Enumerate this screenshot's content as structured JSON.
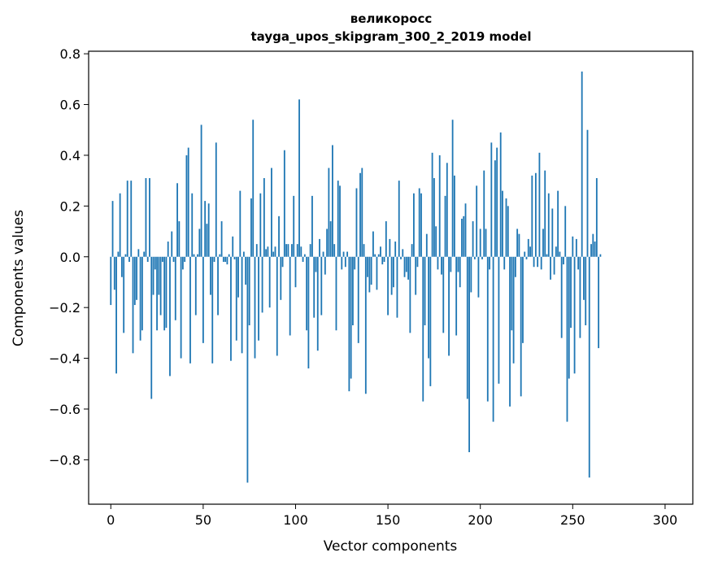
{
  "chart_data": {
    "type": "bar",
    "title": [
      "великоросс",
      "tayga_upos_skipgram_300_2_2019 model"
    ],
    "xlabel": "Vector components",
    "ylabel": "Components values",
    "xlim": [
      -12,
      315
    ],
    "ylim": [
      -0.975,
      0.81
    ],
    "xticks": [
      0,
      50,
      100,
      150,
      200,
      250,
      300
    ],
    "xtick_labels": [
      "0",
      "50",
      "100",
      "150",
      "200",
      "250",
      "300"
    ],
    "yticks": [
      -0.8,
      -0.6,
      -0.4,
      -0.2,
      0.0,
      0.2,
      0.4,
      0.6,
      0.8
    ],
    "ytick_labels": [
      "−0.8",
      "−0.6",
      "−0.4",
      "−0.2",
      "0.0",
      "0.2",
      "0.4",
      "0.6",
      "0.8"
    ],
    "bar_color": "#1f77b4",
    "grid": false,
    "series": [
      {
        "name": "великоросс",
        "values": [
          -0.19,
          0.22,
          -0.13,
          -0.46,
          0.02,
          0.25,
          -0.08,
          -0.3,
          0.01,
          0.3,
          -0.02,
          0.3,
          -0.38,
          -0.19,
          -0.17,
          0.03,
          -0.33,
          -0.29,
          0.02,
          0.31,
          -0.02,
          0.31,
          -0.56,
          -0.15,
          -0.05,
          -0.29,
          -0.15,
          -0.23,
          -0.02,
          -0.29,
          -0.28,
          0.06,
          -0.47,
          0.1,
          -0.02,
          -0.25,
          0.29,
          0.14,
          -0.4,
          -0.05,
          -0.02,
          0.4,
          0.43,
          -0.42,
          0.25,
          0.01,
          -0.23,
          0.01,
          0.11,
          0.52,
          -0.34,
          0.22,
          0.13,
          0.21,
          -0.15,
          -0.42,
          -0.02,
          0.45,
          -0.23,
          0.01,
          0.14,
          -0.02,
          -0.02,
          -0.03,
          0.01,
          -0.41,
          0.08,
          -0.01,
          -0.33,
          -0.16,
          0.26,
          -0.38,
          0.02,
          -0.11,
          -0.89,
          -0.27,
          0.23,
          0.54,
          -0.4,
          0.05,
          -0.33,
          0.25,
          -0.22,
          0.31,
          0.03,
          0.04,
          -0.2,
          0.35,
          0.02,
          0.04,
          -0.39,
          0.16,
          -0.17,
          -0.04,
          0.42,
          0.05,
          0.05,
          -0.31,
          0.05,
          0.24,
          -0.12,
          0.05,
          0.62,
          0.04,
          -0.02,
          0.01,
          -0.29,
          -0.44,
          0.05,
          0.24,
          -0.24,
          -0.06,
          -0.37,
          0.07,
          -0.23,
          0.02,
          -0.07,
          0.11,
          0.35,
          0.14,
          0.44,
          0.05,
          -0.29,
          0.3,
          0.28,
          -0.05,
          0.02,
          -0.04,
          0.02,
          -0.53,
          -0.48,
          -0.27,
          -0.05,
          0.27,
          -0.34,
          0.33,
          0.35,
          0.05,
          -0.54,
          -0.08,
          -0.14,
          -0.11,
          0.1,
          0.01,
          -0.13,
          0.01,
          0.04,
          -0.03,
          -0.02,
          0.14,
          -0.23,
          0.07,
          -0.15,
          -0.12,
          0.06,
          -0.24,
          0.3,
          -0.01,
          0.03,
          -0.08,
          -0.06,
          -0.09,
          -0.3,
          0.05,
          0.25,
          -0.15,
          -0.04,
          0.27,
          0.25,
          -0.57,
          -0.27,
          0.09,
          -0.4,
          -0.51,
          0.41,
          0.31,
          0.12,
          -0.05,
          0.4,
          -0.07,
          -0.3,
          0.24,
          0.37,
          -0.39,
          -0.06,
          0.54,
          0.32,
          -0.31,
          -0.06,
          -0.12,
          0.15,
          0.16,
          0.21,
          -0.56,
          -0.77,
          -0.14,
          0.14,
          -0.01,
          0.28,
          -0.16,
          0.11,
          -0.01,
          0.34,
          0.11,
          -0.57,
          -0.05,
          0.45,
          -0.65,
          0.38,
          0.43,
          -0.5,
          0.49,
          0.26,
          -0.05,
          0.23,
          0.2,
          -0.59,
          -0.29,
          -0.42,
          -0.08,
          0.11,
          0.09,
          -0.55,
          -0.34,
          0.02,
          -0.01,
          0.07,
          0.04,
          0.32,
          -0.04,
          0.33,
          -0.04,
          0.41,
          -0.05,
          0.11,
          0.34,
          0.01,
          0.25,
          -0.09,
          0.19,
          -0.07,
          0.04,
          0.26,
          0.02,
          -0.32,
          -0.03,
          0.2,
          -0.65,
          -0.48,
          -0.28,
          0.08,
          -0.46,
          0.07,
          -0.05,
          -0.32,
          0.73,
          -0.17,
          -0.27,
          0.5,
          -0.87,
          0.05,
          0.09,
          0.06,
          0.31,
          -0.36,
          0.01
        ]
      }
    ]
  }
}
